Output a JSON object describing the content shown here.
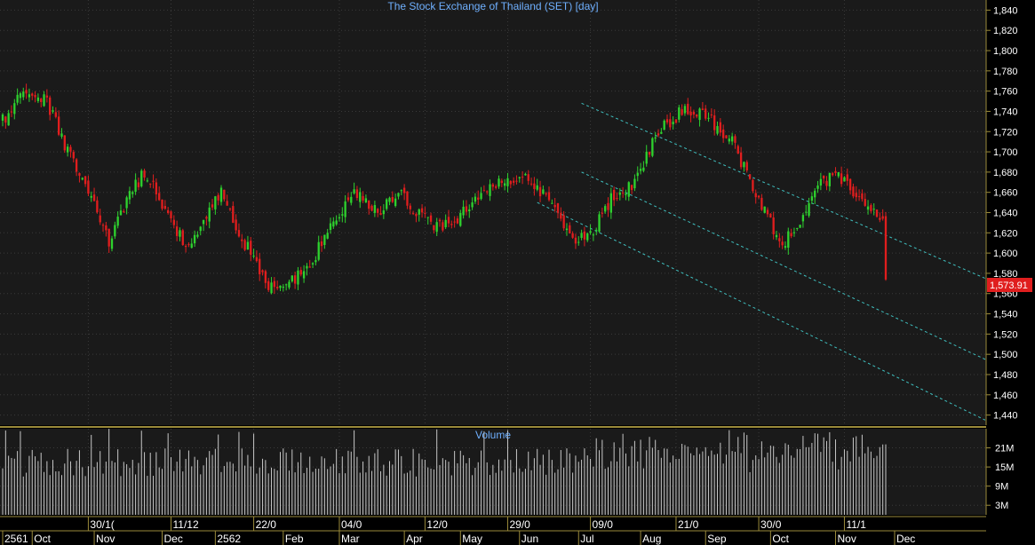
{
  "colors": {
    "background": "#1a1a1a",
    "grid": "#3a3a3a",
    "frame": "#9a8a3a",
    "axis_text": "#ffffff",
    "title_text": "#6fb0ff",
    "up_candle": "#2ed12e",
    "down_candle": "#e01e1e",
    "volume_bar": "#c8c8c8",
    "channel": "#3fbfbf",
    "last_price_bg": "#e01e1e"
  },
  "chart_data": [
    {
      "type": "candlestick",
      "title": "The Stock Exchange of Thailand (SET) [day]",
      "ylim": [
        1430,
        1850
      ],
      "yticks": [
        1440,
        1460,
        1480,
        1500,
        1520,
        1540,
        1560,
        1580,
        1600,
        1620,
        1640,
        1660,
        1680,
        1700,
        1720,
        1740,
        1760,
        1780,
        1800,
        1820,
        1840
      ],
      "ytick_labels": [
        "1,440",
        "1,460",
        "1,480",
        "1,500",
        "1,520",
        "1,540",
        "1,560",
        "1,580",
        "1,600",
        "1,620",
        "1,640",
        "1,660",
        "1,680",
        "1,700",
        "1,720",
        "1,740",
        "1,760",
        "1,780",
        "1,800",
        "1,820",
        "1,840"
      ],
      "last_price_label": "1,573.91",
      "last_price": 1573.91,
      "grid": true,
      "trading_days": 300,
      "close_anchors": [
        [
          0,
          1730
        ],
        [
          6,
          1755
        ],
        [
          14,
          1755
        ],
        [
          22,
          1700
        ],
        [
          30,
          1660
        ],
        [
          36,
          1610
        ],
        [
          42,
          1655
        ],
        [
          48,
          1680
        ],
        [
          56,
          1640
        ],
        [
          62,
          1605
        ],
        [
          68,
          1630
        ],
        [
          74,
          1660
        ],
        [
          82,
          1610
        ],
        [
          90,
          1570
        ],
        [
          96,
          1565
        ],
        [
          104,
          1590
        ],
        [
          112,
          1630
        ],
        [
          120,
          1660
        ],
        [
          128,
          1640
        ],
        [
          134,
          1660
        ],
        [
          140,
          1640
        ],
        [
          148,
          1625
        ],
        [
          156,
          1640
        ],
        [
          164,
          1665
        ],
        [
          172,
          1675
        ],
        [
          180,
          1670
        ],
        [
          188,
          1640
        ],
        [
          194,
          1610
        ],
        [
          200,
          1620
        ],
        [
          206,
          1655
        ],
        [
          214,
          1670
        ],
        [
          222,
          1720
        ],
        [
          230,
          1740
        ],
        [
          238,
          1735
        ],
        [
          246,
          1715
        ],
        [
          252,
          1680
        ],
        [
          258,
          1640
        ],
        [
          264,
          1610
        ],
        [
          270,
          1625
        ],
        [
          276,
          1665
        ],
        [
          282,
          1680
        ],
        [
          290,
          1655
        ],
        [
          298,
          1630
        ]
      ],
      "channel_lines": [
        {
          "x": [
            196,
            300
          ],
          "y": [
            1748,
            1575
          ]
        },
        {
          "x": [
            196,
            300
          ],
          "y": [
            1680,
            1495
          ]
        },
        {
          "x": [
            181,
            300
          ],
          "y": [
            1650,
            1435
          ]
        }
      ]
    },
    {
      "type": "bar",
      "title": "Volume",
      "ylim": [
        0,
        27
      ],
      "yticks": [
        3,
        9,
        15,
        21
      ],
      "ytick_labels": [
        "3M",
        "9M",
        "15M",
        "21M"
      ],
      "value_range_millions": [
        12,
        27
      ]
    }
  ],
  "time_axis": {
    "upper_labels": [
      {
        "day": 29,
        "text": "30/1("
      },
      {
        "day": 57,
        "text": "11/12"
      },
      {
        "day": 85,
        "text": "22/0"
      },
      {
        "day": 114,
        "text": "04/0"
      },
      {
        "day": 143,
        "text": "12/0"
      },
      {
        "day": 171,
        "text": "29/0"
      },
      {
        "day": 199,
        "text": "09/0"
      },
      {
        "day": 228,
        "text": "21/0"
      },
      {
        "day": 256,
        "text": "30/0"
      },
      {
        "day": 285,
        "text": "11/1"
      }
    ],
    "lower_labels": [
      {
        "day": 0,
        "text": "2561"
      },
      {
        "day": 10,
        "text": "Oct"
      },
      {
        "day": 31,
        "text": "Nov"
      },
      {
        "day": 54,
        "text": "Dec"
      },
      {
        "day": 72,
        "text": "2562"
      },
      {
        "day": 95,
        "text": "Feb"
      },
      {
        "day": 114,
        "text": "Mar"
      },
      {
        "day": 136,
        "text": "Apr"
      },
      {
        "day": 155,
        "text": "May"
      },
      {
        "day": 175,
        "text": "Jun"
      },
      {
        "day": 195,
        "text": "Jul"
      },
      {
        "day": 216,
        "text": "Aug"
      },
      {
        "day": 238,
        "text": "Sep"
      },
      {
        "day": 260,
        "text": "Oct"
      },
      {
        "day": 282,
        "text": "Nov"
      },
      {
        "day": 302,
        "text": "Dec"
      }
    ]
  }
}
